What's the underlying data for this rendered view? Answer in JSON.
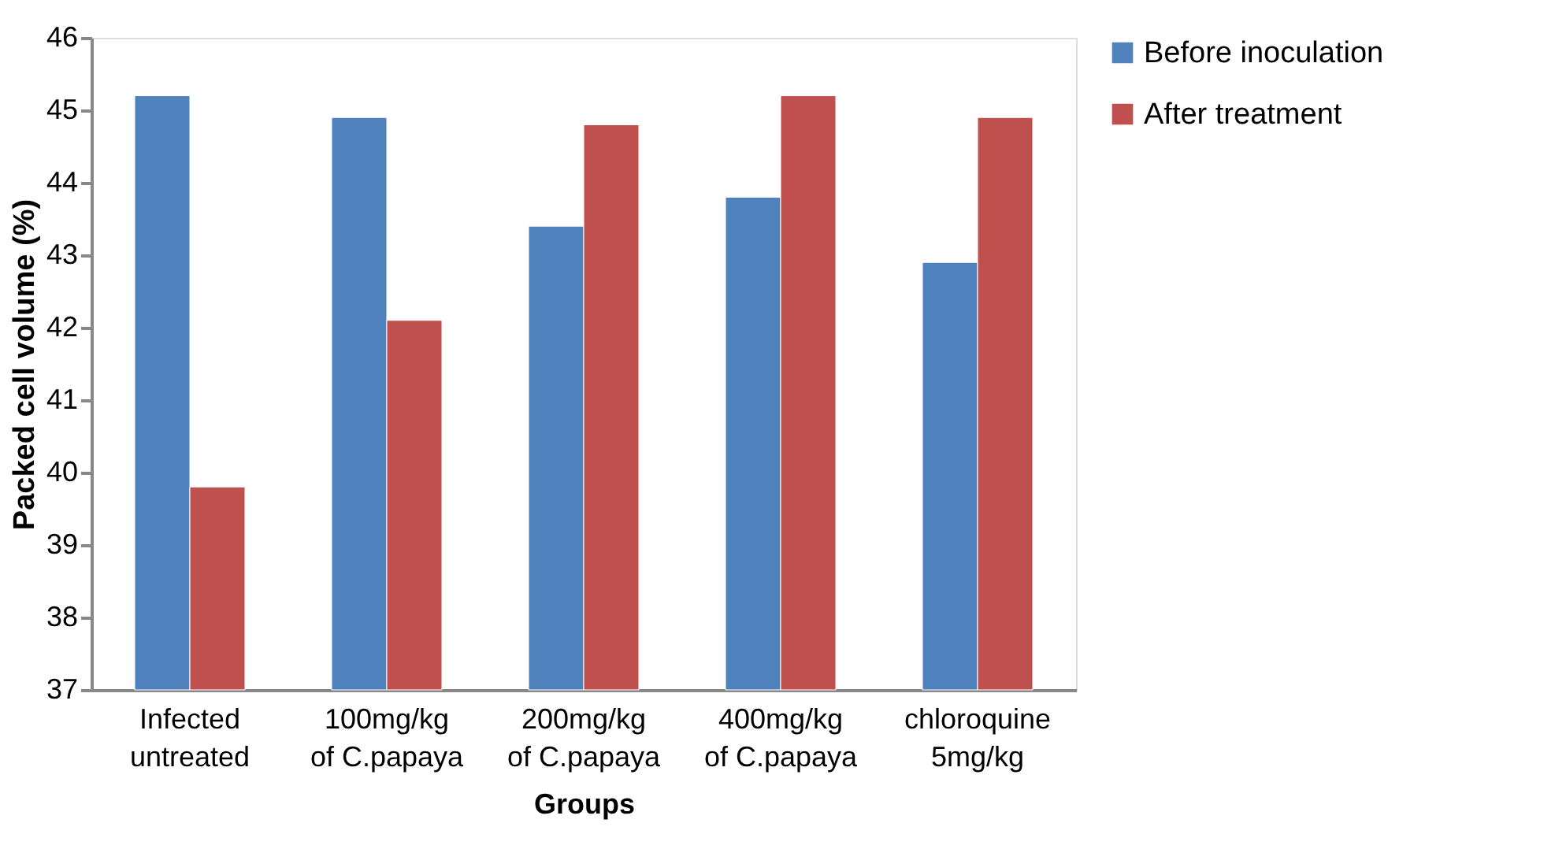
{
  "chart_data": {
    "type": "bar",
    "xlabel": "Groups",
    "ylabel": "Packed cell volume (%)",
    "categories": [
      "Infected\nuntreated",
      "100mg/kg\nof C.papaya",
      "200mg/kg\nof C.papaya",
      "400mg/kg\nof C.papaya",
      "chloroquine\n5mg/kg"
    ],
    "series": [
      {
        "name": "Before inoculation",
        "color": "#4f81bd",
        "values": [
          45.2,
          44.9,
          43.4,
          43.8,
          42.9
        ]
      },
      {
        "name": "After treatment",
        "color": "#c0504d",
        "values": [
          39.8,
          42.1,
          44.8,
          45.2,
          44.9
        ]
      }
    ],
    "ylim": [
      37,
      46
    ],
    "yticks": [
      37,
      38,
      39,
      40,
      41,
      42,
      43,
      44,
      45,
      46
    ],
    "grid": false,
    "legend": "right"
  }
}
